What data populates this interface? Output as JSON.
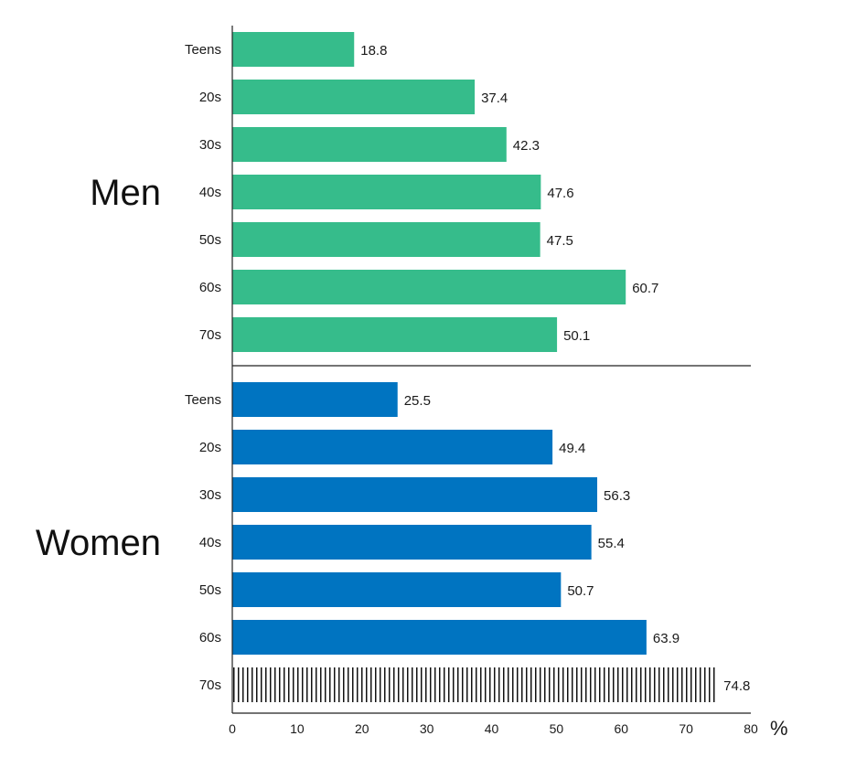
{
  "chart_data": {
    "type": "bar",
    "orientation": "horizontal",
    "groups": [
      {
        "name": "Men",
        "color": "#36bc8b",
        "categories": [
          "Teens",
          "20s",
          "30s",
          "40s",
          "50s",
          "60s",
          "70s"
        ],
        "values": [
          18.8,
          37.4,
          42.3,
          47.6,
          47.5,
          60.7,
          50.1
        ],
        "labels": [
          "18.8",
          "37.4",
          "42.3",
          "47.6",
          "47.5",
          "60.7",
          "50.1"
        ],
        "patterns": [
          "solid",
          "solid",
          "solid",
          "solid",
          "solid",
          "solid",
          "solid"
        ]
      },
      {
        "name": "Women",
        "color": "#0074c1",
        "categories": [
          "Teens",
          "20s",
          "30s",
          "40s",
          "50s",
          "60s",
          "70s"
        ],
        "values": [
          25.5,
          49.4,
          56.3,
          55.4,
          50.7,
          63.9,
          74.8
        ],
        "labels": [
          "25.5",
          "49.4",
          "56.3",
          "55.4",
          "50.7",
          "63.9",
          "74.8"
        ],
        "patterns": [
          "solid",
          "solid",
          "solid",
          "solid",
          "solid",
          "solid",
          "vertical-stripes"
        ]
      }
    ],
    "xlim": [
      0,
      80
    ],
    "xticks": [
      "0",
      "10",
      "20",
      "30",
      "40",
      "50",
      "60",
      "70",
      "80"
    ],
    "xunit": "%",
    "grid": false
  }
}
